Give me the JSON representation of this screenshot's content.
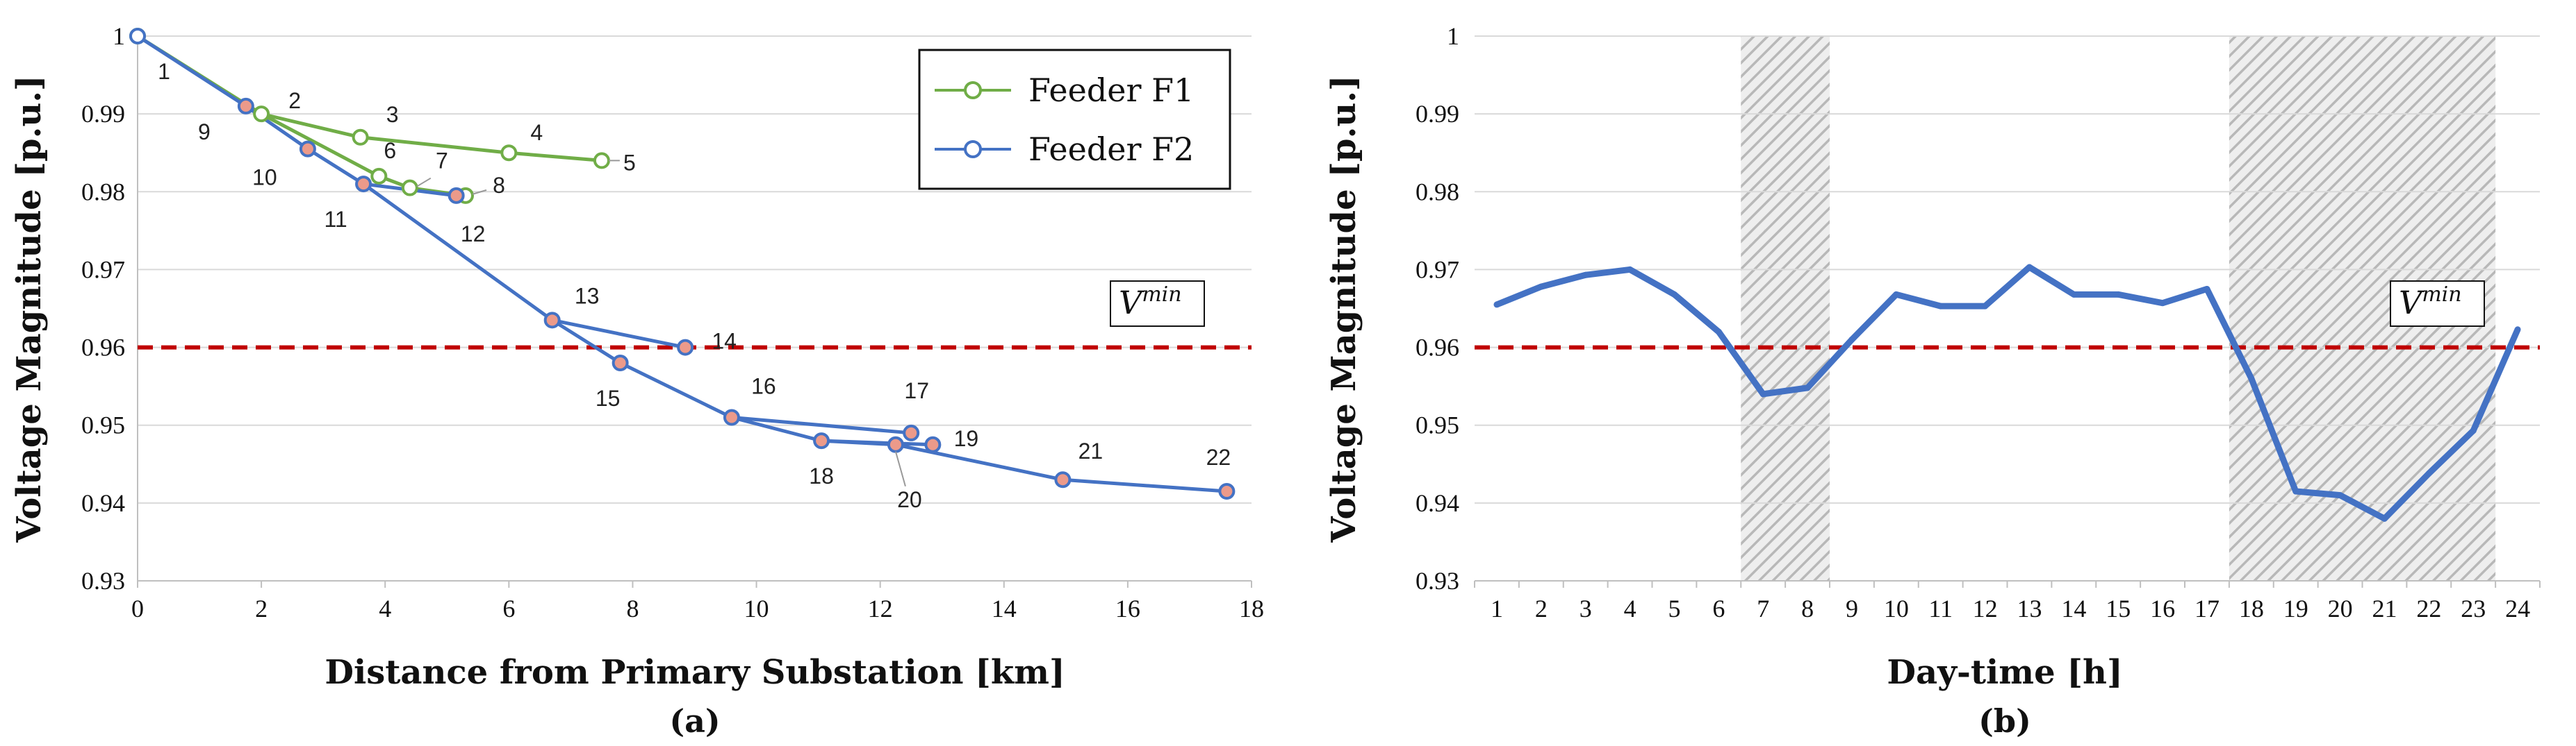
{
  "chart_data": [
    {
      "type": "line",
      "caption": "(a)",
      "xlabel": "Distance from Primary Substation [km]",
      "ylabel": "Voltage Magnitude [p.u.]",
      "xlim": [
        0,
        18
      ],
      "ylim": [
        0.93,
        1.0
      ],
      "xticks": [
        "0",
        "2",
        "4",
        "6",
        "8",
        "10",
        "12",
        "14",
        "16",
        "18"
      ],
      "yticks": [
        "0.93",
        "0.94",
        "0.95",
        "0.96",
        "0.97",
        "0.98",
        "0.99",
        "1"
      ],
      "grid": "horizontal",
      "legend": "top-right",
      "vmin_label": {
        "base": "V",
        "sup": "min"
      },
      "vmin_value": 0.96,
      "series": [
        {
          "name": "Feeder F1",
          "color": "#70ad47",
          "points": [
            {
              "label": "1",
              "x": 0,
              "y": 1.0
            },
            {
              "label": "2",
              "x": 2.0,
              "y": 0.99
            },
            {
              "label": "3",
              "x": 3.6,
              "y": 0.987
            },
            {
              "label": "4",
              "x": 6.0,
              "y": 0.985
            },
            {
              "label": "5",
              "x": 7.5,
              "y": 0.984
            },
            {
              "label": "6",
              "x": 3.9,
              "y": 0.982
            },
            {
              "label": "7",
              "x": 4.4,
              "y": 0.9805
            },
            {
              "label": "8",
              "x": 5.3,
              "y": 0.9795
            }
          ],
          "edges": [
            [
              1,
              2
            ],
            [
              2,
              3
            ],
            [
              3,
              4
            ],
            [
              4,
              5
            ],
            [
              2,
              6
            ],
            [
              6,
              7
            ],
            [
              7,
              8
            ]
          ]
        },
        {
          "name": "Feeder F2",
          "color": "#4472c4",
          "points": [
            {
              "label": "1",
              "x": 0,
              "y": 1.0
            },
            {
              "label": "9",
              "x": 1.75,
              "y": 0.991
            },
            {
              "label": "10",
              "x": 2.75,
              "y": 0.9855
            },
            {
              "label": "11",
              "x": 3.65,
              "y": 0.981
            },
            {
              "label": "12",
              "x": 5.15,
              "y": 0.9795
            },
            {
              "label": "13",
              "x": 6.7,
              "y": 0.9635
            },
            {
              "label": "14",
              "x": 8.85,
              "y": 0.96
            },
            {
              "label": "15",
              "x": 7.8,
              "y": 0.958
            },
            {
              "label": "16",
              "x": 9.6,
              "y": 0.951
            },
            {
              "label": "17",
              "x": 12.5,
              "y": 0.949
            },
            {
              "label": "18",
              "x": 11.05,
              "y": 0.948
            },
            {
              "label": "19",
              "x": 12.85,
              "y": 0.9475
            },
            {
              "label": "20",
              "x": 12.25,
              "y": 0.9475
            },
            {
              "label": "21",
              "x": 14.95,
              "y": 0.943
            },
            {
              "label": "22",
              "x": 17.6,
              "y": 0.9415
            }
          ],
          "edges": [
            [
              1,
              9
            ],
            [
              9,
              10
            ],
            [
              10,
              11
            ],
            [
              11,
              12
            ],
            [
              11,
              13
            ],
            [
              13,
              14
            ],
            [
              13,
              15
            ],
            [
              15,
              16
            ],
            [
              16,
              17
            ],
            [
              16,
              18
            ],
            [
              18,
              19
            ],
            [
              18,
              20
            ],
            [
              20,
              21
            ],
            [
              21,
              22
            ]
          ]
        }
      ]
    },
    {
      "type": "line",
      "caption": "(b)",
      "xlabel": "Day-time [h]",
      "ylabel": "Voltage Magnitude [p.u.]",
      "ylim": [
        0.93,
        1.0
      ],
      "yticks": [
        "0.93",
        "0.94",
        "0.95",
        "0.96",
        "0.97",
        "0.98",
        "0.99",
        "1"
      ],
      "grid": "horizontal",
      "vmin_label": {
        "base": "V",
        "sup": "min"
      },
      "vmin_value": 0.96,
      "categories": [
        "1",
        "2",
        "3",
        "4",
        "5",
        "6",
        "7",
        "8",
        "9",
        "10",
        "11",
        "12",
        "13",
        "14",
        "15",
        "16",
        "17",
        "18",
        "19",
        "20",
        "21",
        "22",
        "23",
        "24"
      ],
      "values": [
        0.9655,
        0.9678,
        0.9693,
        0.97,
        0.9668,
        0.962,
        0.954,
        0.9548,
        0.961,
        0.9668,
        0.9653,
        0.9653,
        0.9703,
        0.9668,
        0.9668,
        0.9657,
        0.9675,
        0.956,
        0.9415,
        0.941,
        0.938,
        0.9438,
        0.9493,
        0.9623
      ],
      "color": "#4472c4",
      "shaded_hours": [
        [
          6.5,
          8.5
        ],
        [
          17.5,
          23.5
        ]
      ]
    }
  ]
}
